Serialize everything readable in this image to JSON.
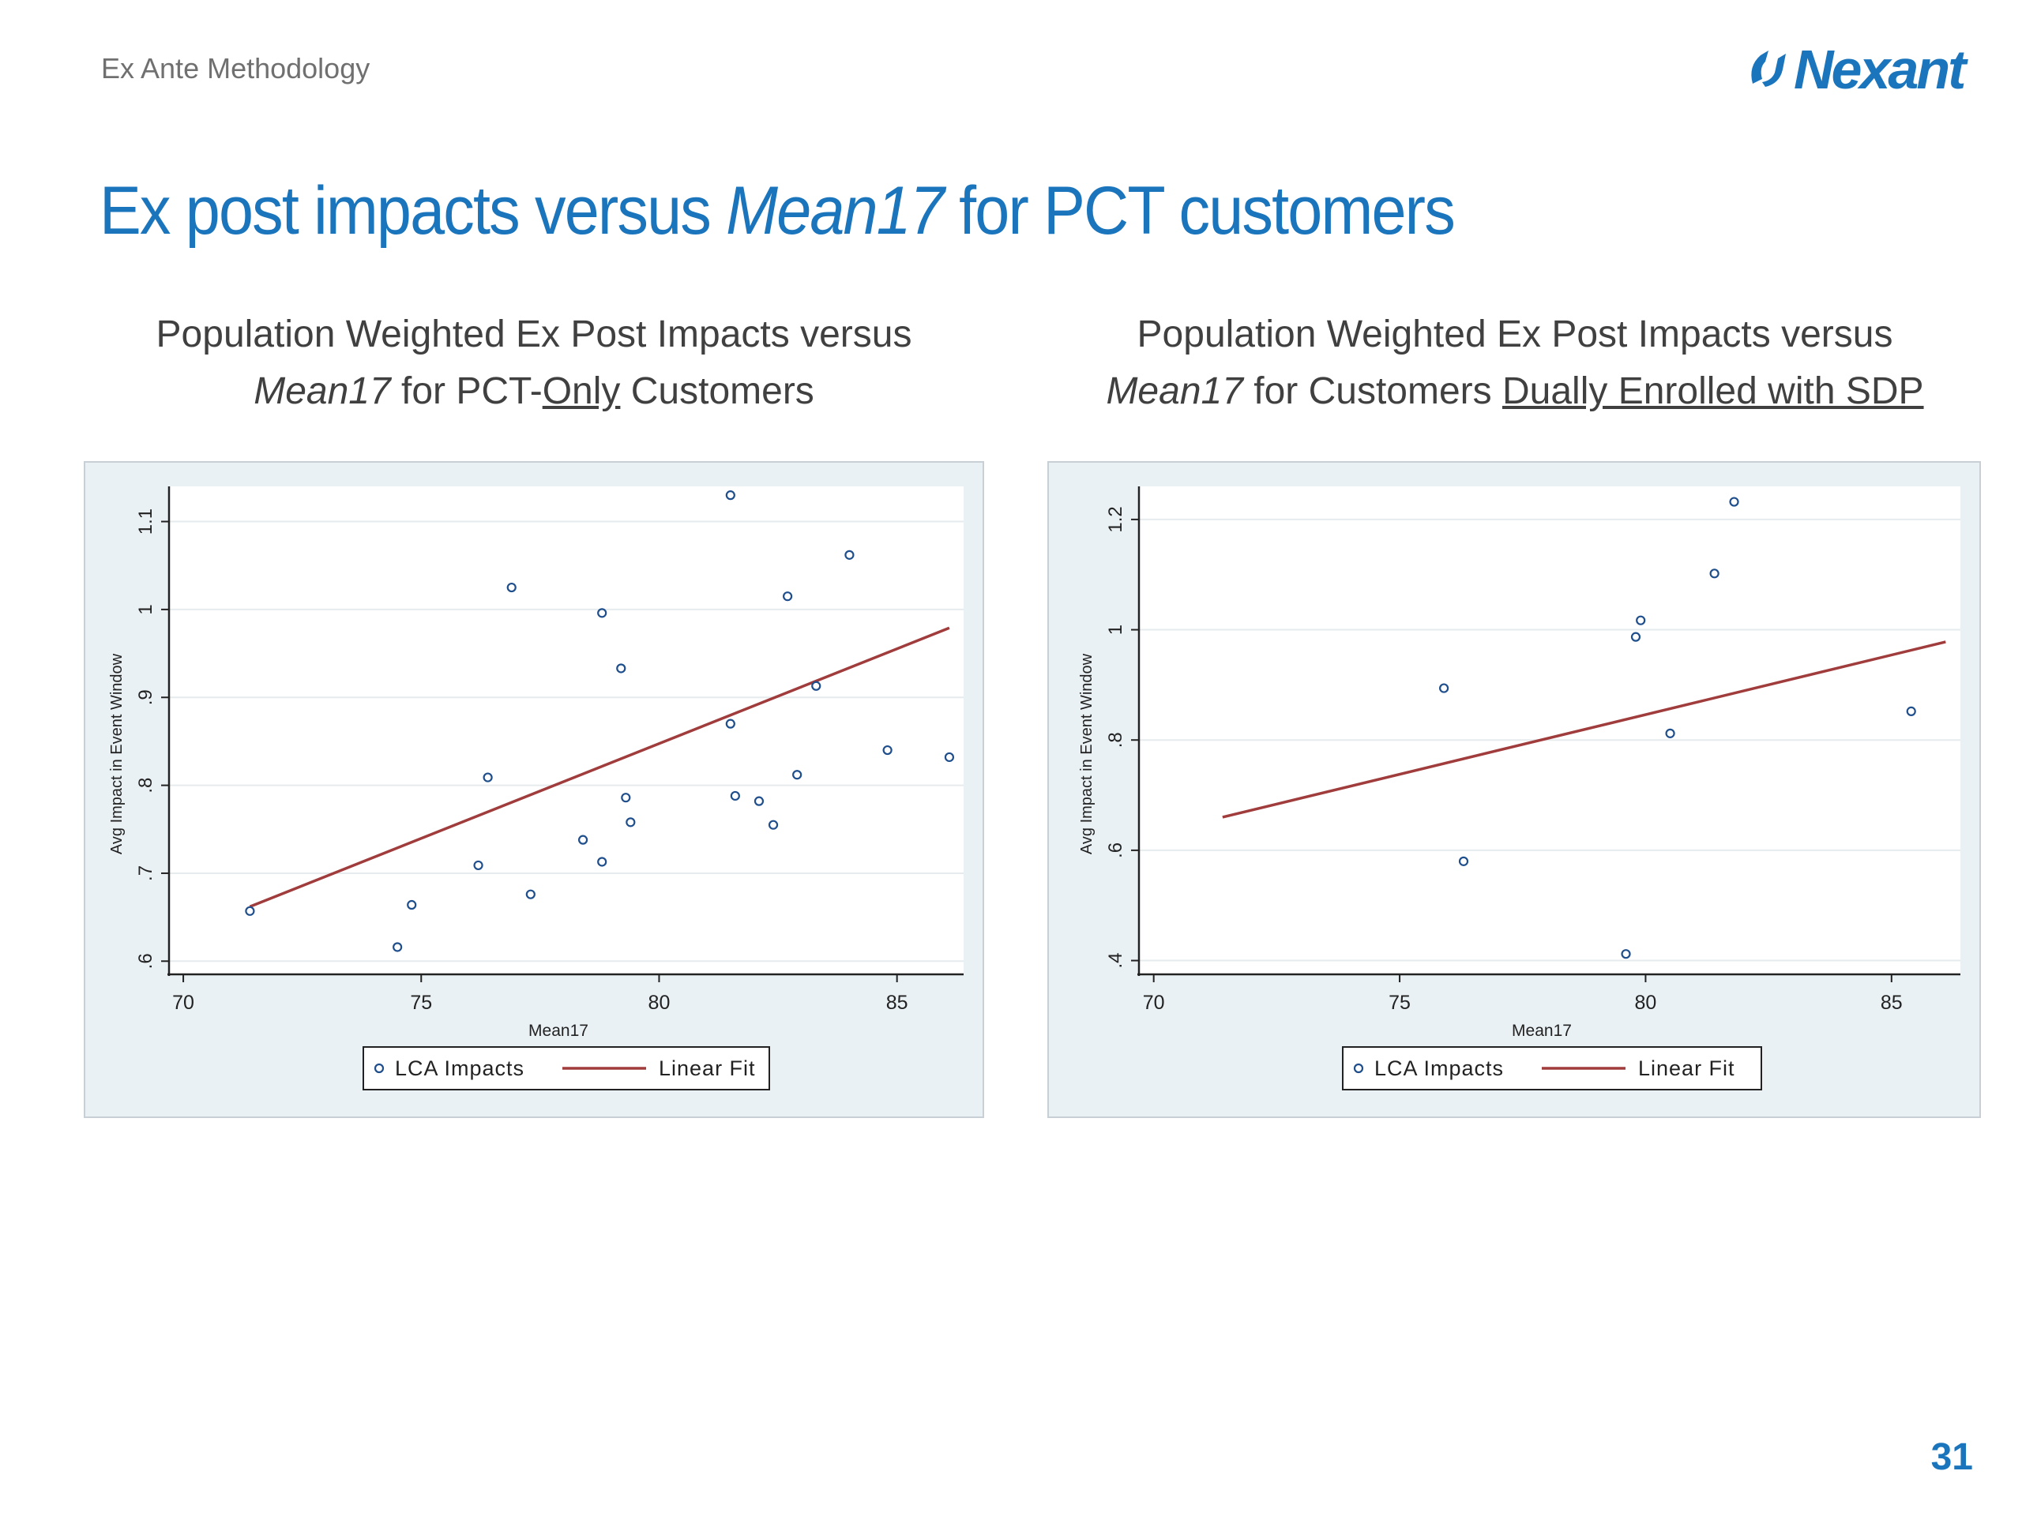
{
  "header": {
    "section_label": "Ex Ante Methodology",
    "logo_text": "Nexant"
  },
  "title": {
    "prefix": "Ex post impacts versus ",
    "italic": "Mean17",
    "suffix": " for PCT customers"
  },
  "page_number": "31",
  "charts_text": [
    {
      "line1": "Population Weighted Ex Post Impacts versus",
      "italic": "Mean17",
      "mid": " for PCT-",
      "underlined": "Only",
      "tail": " Customers"
    },
    {
      "line1": "Population Weighted Ex Post Impacts versus",
      "italic": "Mean17",
      "mid": " for Customers ",
      "underlined": "Dually Enrolled with SDP",
      "tail": ""
    }
  ],
  "colors": {
    "title_blue": "#1b75bc",
    "fit_line": "#a03c3c",
    "marker": "#1f4e8c",
    "panel_bg": "#eaf1f4",
    "plot_bg": "#ffffff"
  },
  "chart_data": [
    {
      "type": "scatter",
      "title": "Population Weighted Ex Post Impacts versus Mean17 for PCT-Only Customers",
      "xlabel": "Mean17",
      "ylabel": "Avg Impact in Event Window",
      "xlim": [
        69.7,
        86.4
      ],
      "ylim": [
        0.585,
        1.14
      ],
      "xticks": [
        70,
        75,
        80,
        85
      ],
      "yticks": [
        0.6,
        0.7,
        0.8,
        0.9,
        1,
        1.1
      ],
      "ytick_labels": [
        ".6",
        ".7",
        ".8",
        ".9",
        "1",
        "1.1"
      ],
      "grid": true,
      "legend_position": "bottom",
      "series": [
        {
          "name": "LCA Impacts",
          "type": "scatter",
          "x": [
            71.4,
            74.5,
            74.8,
            76.2,
            76.4,
            76.9,
            77.3,
            78.4,
            78.8,
            78.8,
            79.2,
            79.3,
            79.4,
            81.5,
            81.5,
            81.6,
            82.1,
            82.4,
            82.7,
            82.9,
            83.3,
            84.0,
            84.8,
            86.1
          ],
          "y": [
            0.657,
            0.616,
            0.664,
            0.709,
            0.809,
            1.025,
            0.676,
            0.738,
            0.713,
            0.996,
            0.933,
            0.786,
            0.758,
            1.13,
            0.87,
            0.788,
            0.782,
            0.755,
            1.015,
            0.812,
            0.913,
            1.062,
            0.84,
            0.832
          ]
        },
        {
          "name": "Linear Fit",
          "type": "line",
          "x": [
            71.4,
            86.1
          ],
          "y": [
            0.662,
            0.979
          ]
        }
      ]
    },
    {
      "type": "scatter",
      "title": "Population Weighted Ex Post Impacts versus Mean17 for Customers Dually Enrolled with SDP",
      "xlabel": "Mean17",
      "ylabel": "Avg Impact in Event Window",
      "xlim": [
        69.7,
        86.4
      ],
      "ylim": [
        0.375,
        1.26
      ],
      "xticks": [
        70,
        75,
        80,
        85
      ],
      "yticks": [
        0.4,
        0.6,
        0.8,
        1,
        1.2
      ],
      "ytick_labels": [
        ".4",
        ".6",
        ".8",
        "1",
        "1.2"
      ],
      "grid": true,
      "legend_position": "bottom",
      "series": [
        {
          "name": "LCA Impacts",
          "type": "scatter",
          "x": [
            75.9,
            76.3,
            79.6,
            79.8,
            79.9,
            80.5,
            81.4,
            81.8,
            85.4
          ],
          "y": [
            0.894,
            0.58,
            0.412,
            0.987,
            1.017,
            0.812,
            1.102,
            1.232,
            0.852
          ]
        },
        {
          "name": "Linear Fit",
          "type": "line",
          "x": [
            71.4,
            86.1
          ],
          "y": [
            0.66,
            0.978
          ]
        }
      ]
    }
  ]
}
